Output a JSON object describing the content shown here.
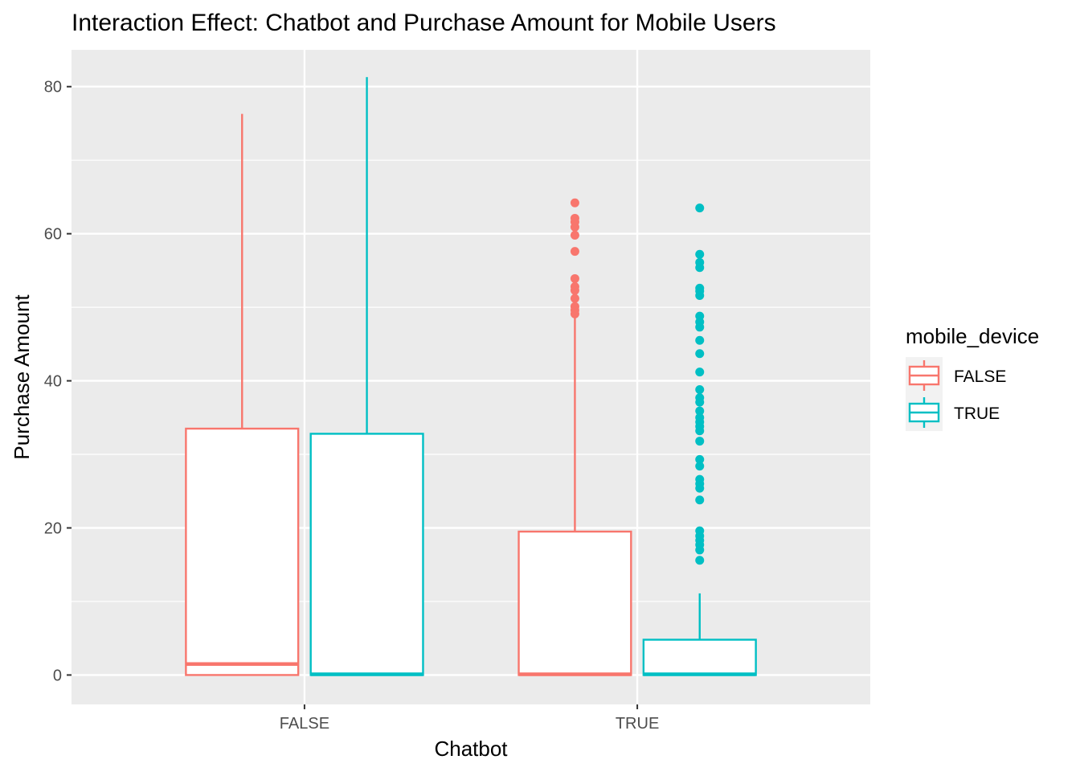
{
  "chart_data": {
    "type": "box",
    "title": "Interaction Effect: Chatbot and Purchase Amount for Mobile Users",
    "xlabel": "Chatbot",
    "ylabel": "Purchase Amount",
    "categories": [
      "FALSE",
      "TRUE"
    ],
    "ylim": [
      -4,
      85
    ],
    "y_ticks": [
      0,
      20,
      40,
      60,
      80
    ],
    "grid": true,
    "legend": {
      "title": "mobile_device",
      "position": "right",
      "entries": [
        "FALSE",
        "TRUE"
      ]
    },
    "series": [
      {
        "name": "FALSE",
        "color": "#F8766D",
        "boxes": [
          {
            "category": "FALSE",
            "min": 0,
            "q1": 0,
            "median": 1.5,
            "q3": 33.5,
            "max": 76.3,
            "outliers": []
          },
          {
            "category": "TRUE",
            "min": 0,
            "q1": 0,
            "median": 0.1,
            "q3": 19.5,
            "max": 48.8,
            "outliers": [
              49.1,
              49.6,
              50.1,
              51.2,
              52.3,
              52.8,
              53.9,
              57.6,
              59.8,
              60.9,
              61.6,
              62.1,
              64.2
            ]
          }
        ]
      },
      {
        "name": "TRUE",
        "color": "#00BFC4",
        "boxes": [
          {
            "category": "FALSE",
            "min": 0,
            "q1": 0,
            "median": 0.1,
            "q3": 32.8,
            "max": 81.3,
            "outliers": []
          },
          {
            "category": "TRUE",
            "min": 0,
            "q1": 0,
            "median": 0.1,
            "q3": 4.8,
            "max": 11.1,
            "outliers": [
              15.6,
              17.0,
              17.7,
              18.3,
              18.9,
              19.6,
              23.8,
              25.4,
              26.0,
              26.6,
              28.4,
              29.3,
              31.8,
              33.2,
              33.8,
              34.4,
              35.0,
              35.9,
              37.1,
              37.7,
              38.8,
              41.2,
              43.7,
              45.5,
              47.3,
              48.0,
              48.8,
              51.6,
              52.2,
              52.6,
              55.4,
              56.1,
              57.2,
              63.5
            ]
          }
        ]
      }
    ]
  }
}
